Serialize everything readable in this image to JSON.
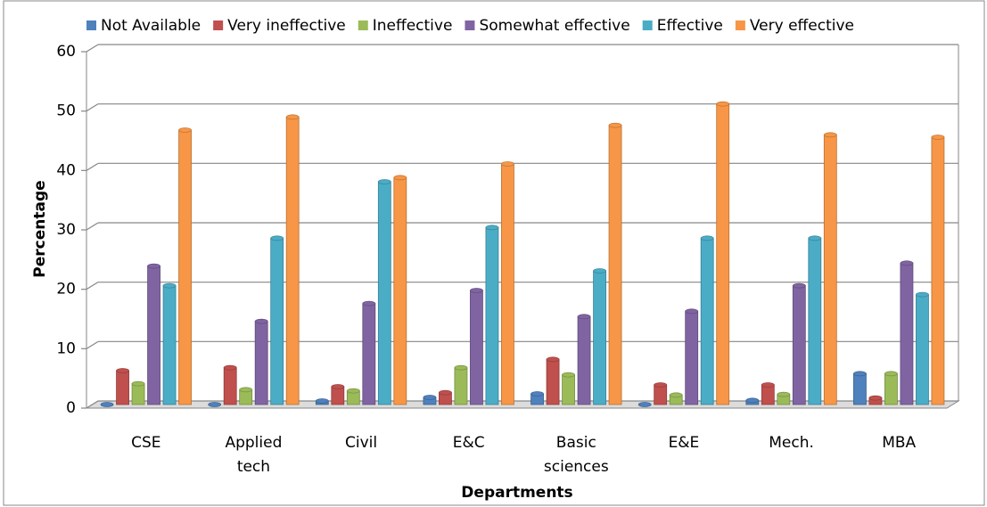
{
  "chart_data": {
    "type": "bar",
    "categories": [
      "CSE",
      "Applied tech",
      "Civil",
      "E&C",
      "Basic sciences",
      "E&E",
      "Mech.",
      "MBA"
    ],
    "series": [
      {
        "name": "Not Available",
        "color": "#4f81bd",
        "values": [
          0,
          0,
          0.6,
          1.2,
          1.8,
          0,
          0.7,
          5.2
        ]
      },
      {
        "name": "Very ineffective",
        "color": "#c0504d",
        "values": [
          5.7,
          6.2,
          3,
          2,
          7.6,
          3.3,
          3.3,
          1.1
        ]
      },
      {
        "name": "Ineffective",
        "color": "#9bbb59",
        "values": [
          3.5,
          2.5,
          2.3,
          6.2,
          5,
          1.6,
          1.7,
          5.2
        ]
      },
      {
        "name": "Somewhat effective",
        "color": "#8064a2",
        "values": [
          23.3,
          14,
          17,
          19.2,
          14.8,
          15.7,
          20,
          23.8
        ]
      },
      {
        "name": "Effective",
        "color": "#4bacc6",
        "values": [
          20,
          28,
          37.5,
          29.8,
          22.5,
          28,
          28,
          18.5
        ]
      },
      {
        "name": "Very effective",
        "color": "#f79646",
        "values": [
          46.2,
          48.4,
          38.2,
          40.5,
          47,
          50.6,
          45.4,
          45
        ]
      }
    ],
    "xlabel": "Departments",
    "ylabel": "Percentage",
    "ylim": [
      0,
      60
    ],
    "yticks": [
      0,
      10,
      20,
      30,
      40,
      50,
      60
    ],
    "grid": true,
    "legend": "top"
  }
}
